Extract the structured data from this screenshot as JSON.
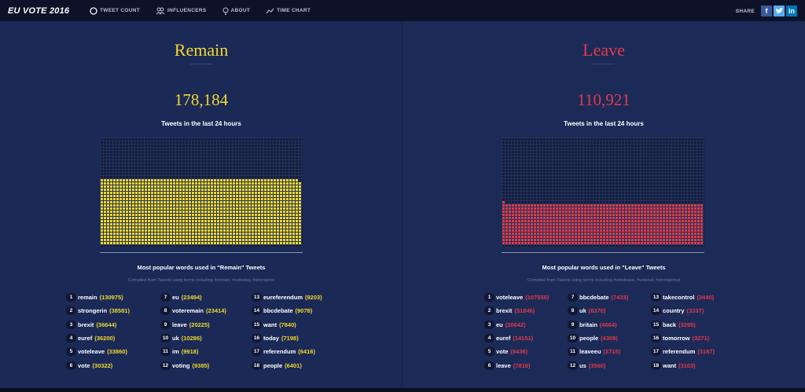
{
  "colors": {
    "remain": "#f1d92b",
    "leave": "#e13a48"
  },
  "nav": {
    "brand": "EU VOTE 2016",
    "items": [
      {
        "label": "TWEET COUNT",
        "icon": "circle-icon"
      },
      {
        "label": "INFLUENCERS",
        "icon": "people-icon"
      },
      {
        "label": "ABOUT",
        "icon": "lightbulb-icon"
      },
      {
        "label": "TIME CHART",
        "icon": "line-chart-icon"
      }
    ],
    "share": {
      "label": "SHARE",
      "buttons": [
        {
          "label": "f",
          "icon": "facebook-icon"
        },
        {
          "label": "",
          "icon": "twitter-icon"
        },
        {
          "label": "in",
          "icon": "linkedin-icon"
        }
      ]
    }
  },
  "remain": {
    "title": "Remain",
    "count": "178,184",
    "count_label": "Tweets in the last 24 hours",
    "fill_fraction": 0.617,
    "words_title": "Most popular words used in \"Remain\" Tweets",
    "compiled": "Compiled from Tweets using terms including #remain, #votestay, #strongerin",
    "words": [
      {
        "rank": "1",
        "word": "remain",
        "count": "(130975)"
      },
      {
        "rank": "2",
        "word": "strongerin",
        "count": "(38581)"
      },
      {
        "rank": "3",
        "word": "brexit",
        "count": "(36644)"
      },
      {
        "rank": "4",
        "word": "euref",
        "count": "(36200)"
      },
      {
        "rank": "5",
        "word": "voteleave",
        "count": "(33860)"
      },
      {
        "rank": "6",
        "word": "vote",
        "count": "(30322)"
      },
      {
        "rank": "7",
        "word": "eu",
        "count": "(23494)"
      },
      {
        "rank": "8",
        "word": "voteremain",
        "count": "(23414)"
      },
      {
        "rank": "9",
        "word": "leave",
        "count": "(20225)"
      },
      {
        "rank": "10",
        "word": "uk",
        "count": "(10286)"
      },
      {
        "rank": "11",
        "word": "im",
        "count": "(9918)"
      },
      {
        "rank": "12",
        "word": "voting",
        "count": "(9385)"
      },
      {
        "rank": "13",
        "word": "eureferendum",
        "count": "(9203)"
      },
      {
        "rank": "14",
        "word": "bbcdebate",
        "count": "(9078)"
      },
      {
        "rank": "15",
        "word": "want",
        "count": "(7840)"
      },
      {
        "rank": "16",
        "word": "today",
        "count": "(7198)"
      },
      {
        "rank": "17",
        "word": "referendum",
        "count": "(6416)"
      },
      {
        "rank": "18",
        "word": "people",
        "count": "(6401)"
      }
    ]
  },
  "leave": {
    "title": "Leave",
    "count": "110,921",
    "count_label": "Tweets in the last 24 hours",
    "fill_fraction": 0.383,
    "words_title": "Most popular words used in \"Leave\" Tweets",
    "compiled": "Compiled from Tweets using terms including #voteleave, #voteout, #strongerout",
    "words": [
      {
        "rank": "1",
        "word": "voteleave",
        "count": "(107558)"
      },
      {
        "rank": "2",
        "word": "brexit",
        "count": "(31846)"
      },
      {
        "rank": "3",
        "word": "eu",
        "count": "(20642)"
      },
      {
        "rank": "4",
        "word": "euref",
        "count": "(14151)"
      },
      {
        "rank": "5",
        "word": "vote",
        "count": "(8436)"
      },
      {
        "rank": "6",
        "word": "leave",
        "count": "(7816)"
      },
      {
        "rank": "7",
        "word": "bbcdebate",
        "count": "(7433)"
      },
      {
        "rank": "8",
        "word": "uk",
        "count": "(6370)"
      },
      {
        "rank": "9",
        "word": "britain",
        "count": "(4664)"
      },
      {
        "rank": "10",
        "word": "people",
        "count": "(4309)"
      },
      {
        "rank": "11",
        "word": "leaveeu",
        "count": "(3715)"
      },
      {
        "rank": "12",
        "word": "us",
        "count": "(3560)"
      },
      {
        "rank": "13",
        "word": "takecontrol",
        "count": "(3440)"
      },
      {
        "rank": "14",
        "word": "country",
        "count": "(3337)"
      },
      {
        "rank": "15",
        "word": "back",
        "count": "(3295)"
      },
      {
        "rank": "16",
        "word": "tomorrow",
        "count": "(3271)"
      },
      {
        "rank": "17",
        "word": "referendum",
        "count": "(3187)"
      },
      {
        "rank": "18",
        "word": "want",
        "count": "(3103)"
      }
    ]
  }
}
